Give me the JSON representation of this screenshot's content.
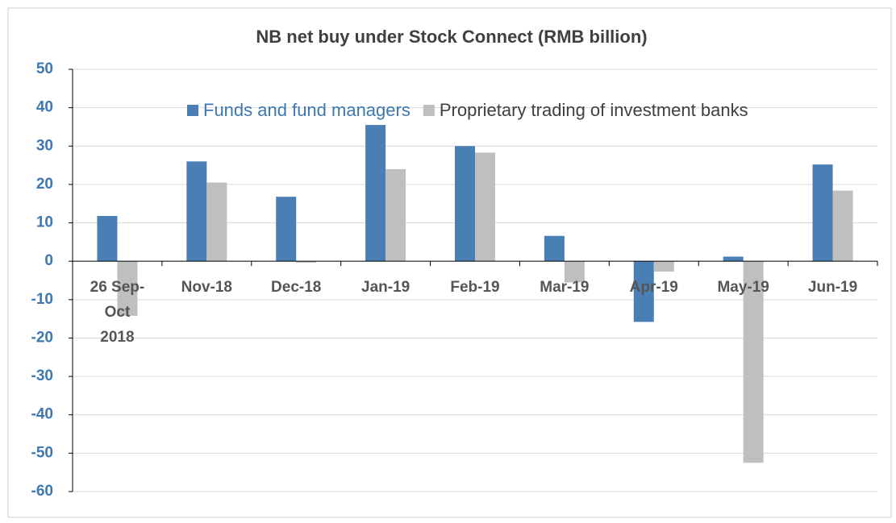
{
  "chart_data": {
    "type": "bar",
    "title": "NB net buy under Stock Connect (RMB billion)",
    "categories": [
      "26 Sep-Oct 2018",
      "Nov-18",
      "Dec-18",
      "Jan-19",
      "Feb-19",
      "Mar-19",
      "Apr-19",
      "May-19",
      "Jun-19"
    ],
    "series": [
      {
        "name": "Funds and fund managers",
        "color": "#4a7fb5",
        "values": [
          11.8,
          26,
          16.8,
          35.5,
          30,
          6.6,
          -15.8,
          1.2,
          25.2
        ]
      },
      {
        "name": "Proprietary trading of investment banks",
        "color": "#bfbfbf",
        "values": [
          -14.2,
          20.5,
          -0.4,
          24,
          28.3,
          -5.5,
          -2.7,
          -52.5,
          18.4
        ]
      }
    ],
    "ylim": [
      -60,
      50
    ],
    "yticks": [
      -60,
      -50,
      -40,
      -30,
      -20,
      -10,
      0,
      10,
      20,
      30,
      40,
      50
    ],
    "grid": true,
    "legend": "top"
  }
}
